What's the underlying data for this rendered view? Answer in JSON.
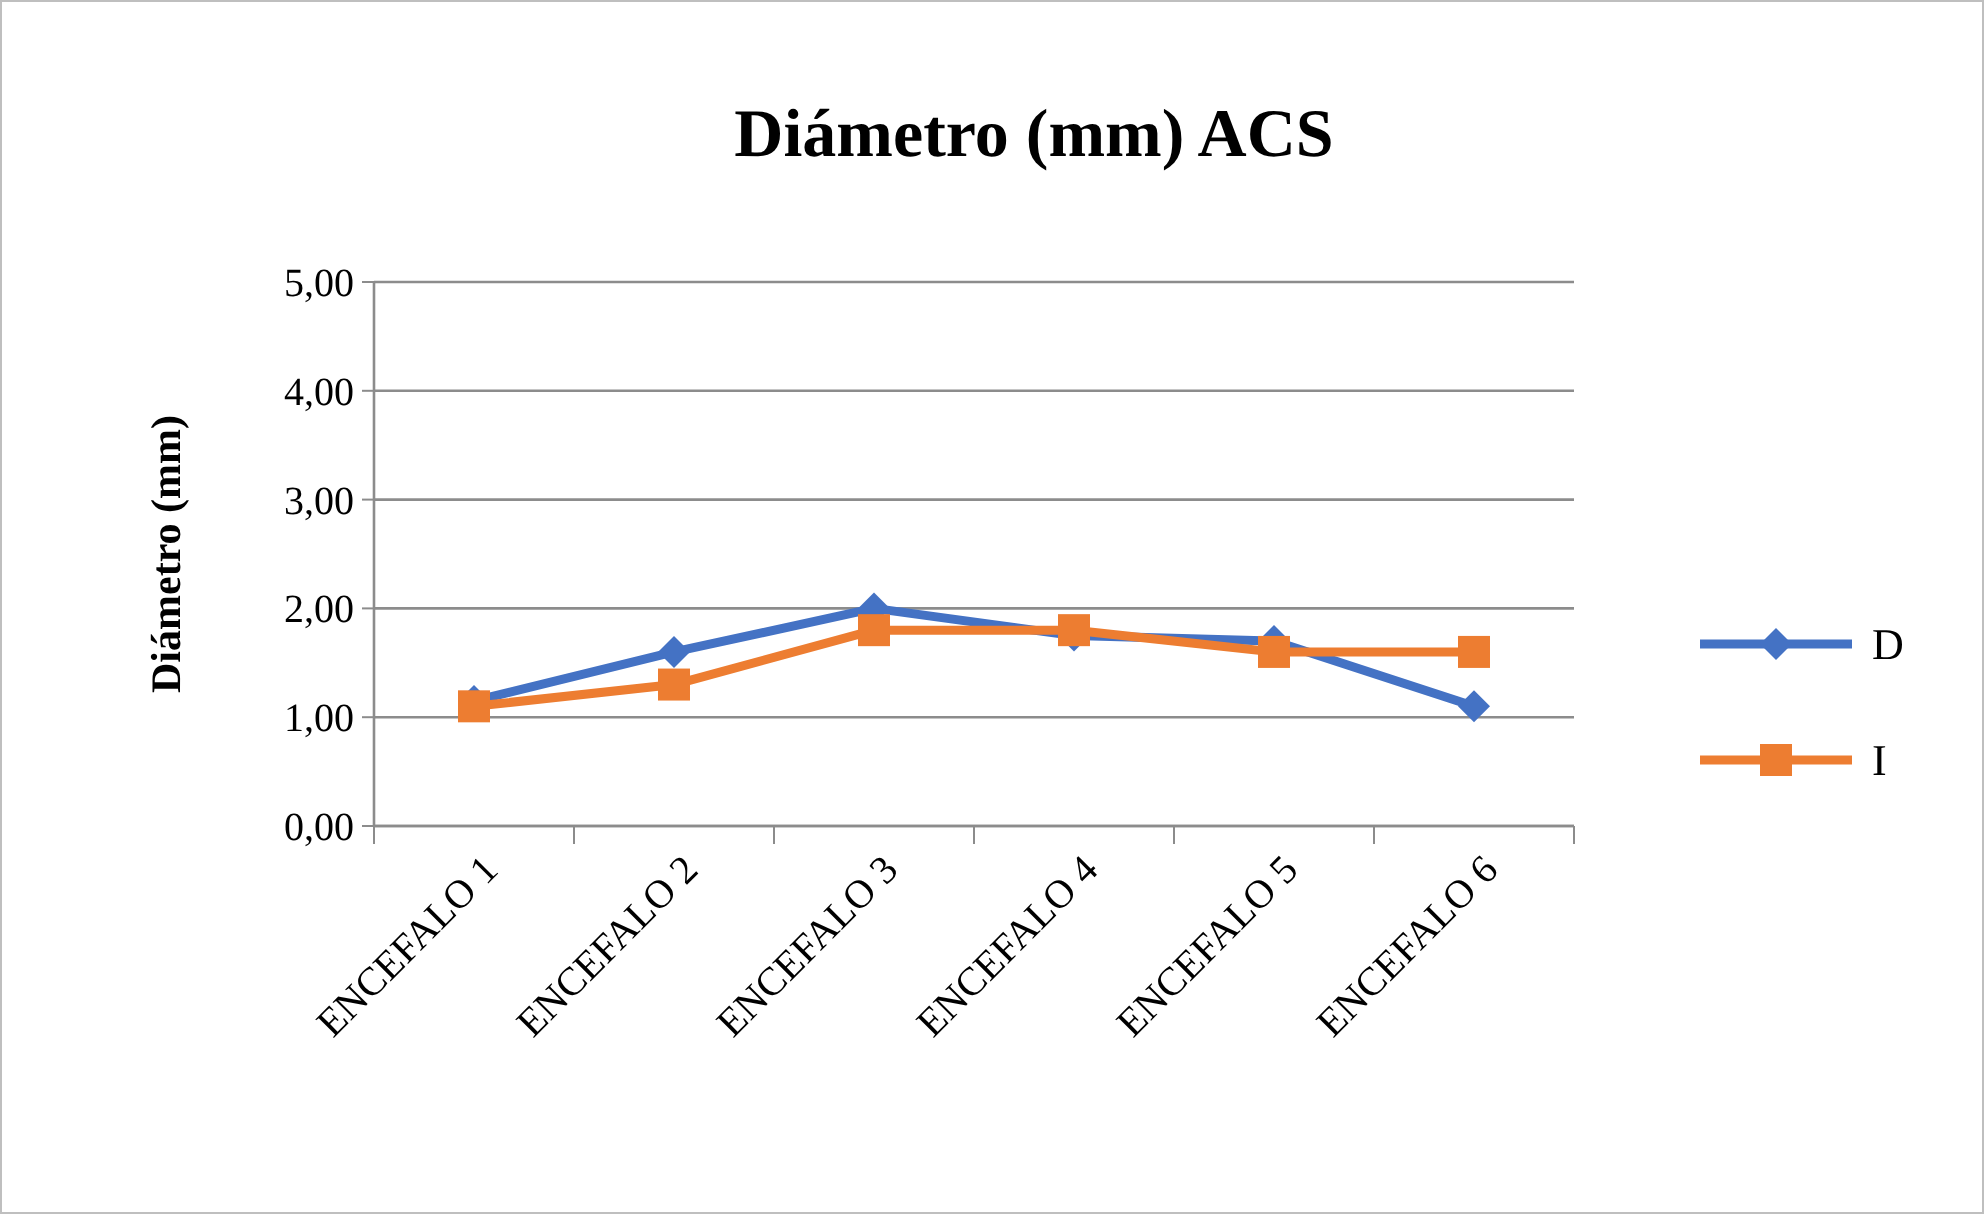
{
  "chart_data": {
    "type": "line",
    "title": "Diámetro (mm) ACS",
    "ylabel": "Diámetro (mm)",
    "categories": [
      "ENCEFALO 1",
      "ENCEFALO 2",
      "ENCEFALO 3",
      "ENCEFALO 4",
      "ENCEFALO 5",
      "ENCEFALO 6"
    ],
    "series": [
      {
        "name": "D",
        "color": "#4472c4",
        "marker": "diamond",
        "values": [
          1.15,
          1.6,
          2.0,
          1.75,
          1.7,
          1.1
        ]
      },
      {
        "name": "I",
        "color": "#ed7d31",
        "marker": "square",
        "values": [
          1.1,
          1.3,
          1.8,
          1.8,
          1.6,
          1.6
        ]
      }
    ],
    "ylim": [
      0,
      5
    ],
    "yticks": [
      {
        "value": 0,
        "label": "0,00"
      },
      {
        "value": 1,
        "label": "1,00"
      },
      {
        "value": 2,
        "label": "2,00"
      },
      {
        "value": 3,
        "label": "3,00"
      },
      {
        "value": 4,
        "label": "4,00"
      },
      {
        "value": 5,
        "label": "5,00"
      }
    ],
    "grid": "y",
    "legend": "right"
  }
}
